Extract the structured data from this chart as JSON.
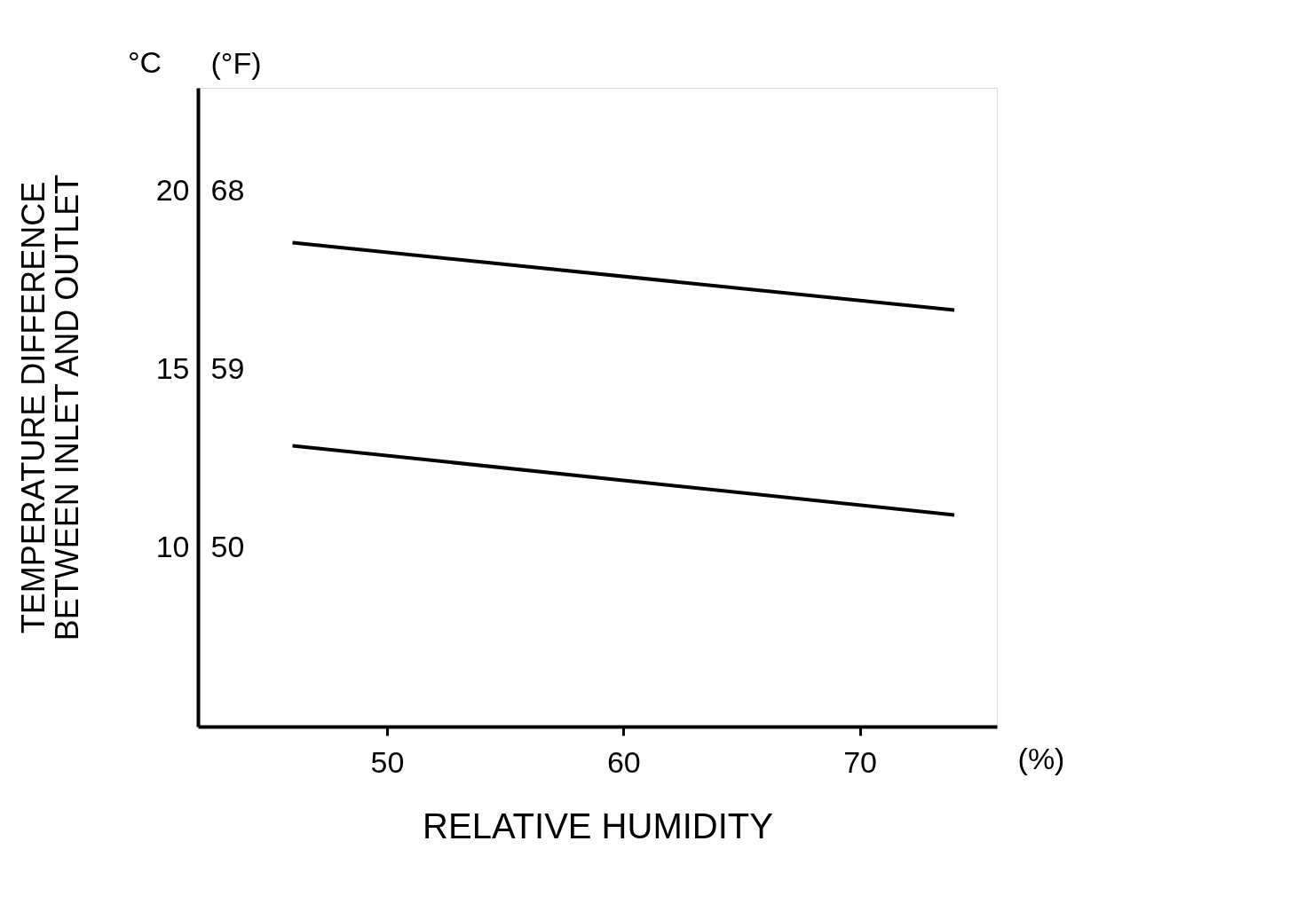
{
  "chart_data": {
    "type": "line",
    "xlabel": "RELATIVE HUMIDITY",
    "ylabel": [
      "TEMPERATURE DIFFERENCE",
      "BETWEEN INLET AND OUTLET"
    ],
    "y2label": "(°F)",
    "annotations": [
      "°C",
      "(%)"
    ],
    "xlim": [
      42,
      75.8
    ],
    "xticks": [
      50,
      60,
      70
    ],
    "ylim": [
      5,
      22.9
    ],
    "yticks": [
      10,
      15,
      20
    ],
    "y2lim": [
      41,
      73.2
    ],
    "y2ticks": [
      50,
      59,
      68
    ],
    "x": [
      46,
      74
    ],
    "series": [
      {
        "color": "#000000",
        "values": [
          18.56,
          16.67
        ]
      },
      {
        "color": "#000000",
        "values": [
          12.87,
          10.93
        ]
      }
    ],
    "grid": false,
    "legend": false
  }
}
